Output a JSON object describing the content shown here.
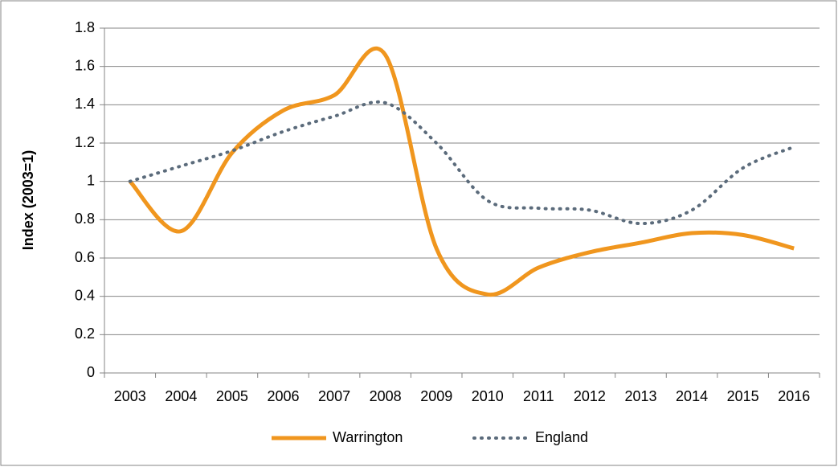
{
  "chart_data": {
    "type": "line",
    "y_label": "Index (2003=1)",
    "categories": [
      "2003",
      "2004",
      "2005",
      "2006",
      "2007",
      "2008",
      "2009",
      "2010",
      "2011",
      "2012",
      "2013",
      "2014",
      "2015",
      "2016"
    ],
    "series": [
      {
        "name": "Warrington",
        "color": "#f0961e",
        "dash": "solid",
        "values": [
          1.0,
          0.74,
          1.15,
          1.37,
          1.45,
          1.66,
          0.65,
          0.41,
          0.55,
          0.63,
          0.68,
          0.73,
          0.72,
          0.65
        ]
      },
      {
        "name": "England",
        "color": "#5b6b7b",
        "dash": "dotted",
        "values": [
          1.0,
          1.08,
          1.16,
          1.26,
          1.34,
          1.41,
          1.2,
          0.9,
          0.86,
          0.85,
          0.78,
          0.85,
          1.07,
          1.18
        ]
      }
    ],
    "ylim": [
      0,
      1.8
    ],
    "yticks": [
      0,
      0.2,
      0.4,
      0.6,
      0.8,
      1,
      1.2,
      1.4,
      1.6,
      1.8
    ],
    "grid": true,
    "legend": "bottom",
    "smooth": true
  }
}
